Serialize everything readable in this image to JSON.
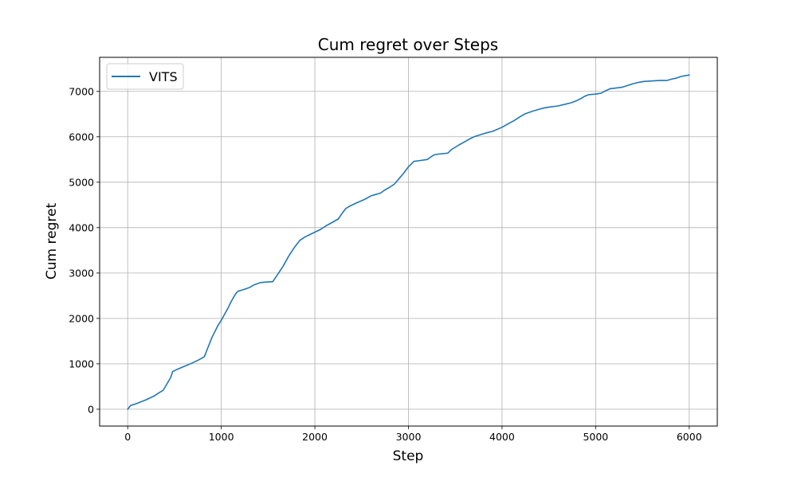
{
  "chart_data": {
    "type": "line",
    "title": "Cum regret over Steps",
    "xlabel": "Step",
    "ylabel": "Cum regret",
    "xlim": [
      -300,
      6300
    ],
    "ylim": [
      -370,
      7750
    ],
    "xticks": [
      0,
      1000,
      2000,
      3000,
      4000,
      5000,
      6000
    ],
    "yticks": [
      0,
      1000,
      2000,
      3000,
      4000,
      5000,
      6000,
      7000
    ],
    "grid": true,
    "legend_position": "top-left",
    "series": [
      {
        "name": "VITS",
        "color": "#1f77b4",
        "x": [
          0,
          30,
          100,
          200,
          280,
          340,
          380,
          420,
          460,
          480,
          530,
          600,
          680,
          760,
          820,
          850,
          900,
          960,
          1000,
          1040,
          1070,
          1100,
          1130,
          1160,
          1180,
          1230,
          1300,
          1350,
          1420,
          1480,
          1550,
          1600,
          1660,
          1720,
          1780,
          1840,
          1890,
          1950,
          2000,
          2060,
          2120,
          2190,
          2250,
          2290,
          2330,
          2370,
          2450,
          2530,
          2600,
          2650,
          2700,
          2750,
          2800,
          2850,
          2900,
          2950,
          3000,
          3060,
          3100,
          3200,
          3270,
          3320,
          3420,
          3460,
          3540,
          3600,
          3660,
          3700,
          3760,
          3820,
          3900,
          4000,
          4060,
          4130,
          4200,
          4250,
          4320,
          4400,
          4460,
          4520,
          4600,
          4660,
          4740,
          4800,
          4840,
          4880,
          4930,
          5000,
          5060,
          5100,
          5160,
          5200,
          5280,
          5340,
          5400,
          5460,
          5520,
          5600,
          5680,
          5760,
          5810,
          5860,
          5900,
          5940,
          6000
        ],
        "values": [
          0,
          80,
          130,
          210,
          290,
          370,
          420,
          560,
          700,
          830,
          880,
          940,
          1010,
          1090,
          1160,
          1320,
          1580,
          1830,
          1960,
          2110,
          2220,
          2350,
          2460,
          2560,
          2600,
          2630,
          2680,
          2740,
          2790,
          2800,
          2810,
          2960,
          3150,
          3370,
          3560,
          3720,
          3790,
          3850,
          3900,
          3960,
          4040,
          4120,
          4190,
          4310,
          4420,
          4470,
          4550,
          4620,
          4700,
          4730,
          4760,
          4830,
          4890,
          4960,
          5080,
          5200,
          5340,
          5460,
          5470,
          5500,
          5600,
          5620,
          5640,
          5720,
          5820,
          5890,
          5960,
          6000,
          6040,
          6080,
          6120,
          6210,
          6280,
          6360,
          6450,
          6510,
          6560,
          6610,
          6640,
          6660,
          6680,
          6710,
          6750,
          6800,
          6840,
          6890,
          6930,
          6940,
          6960,
          7010,
          7060,
          7070,
          7090,
          7130,
          7170,
          7200,
          7220,
          7230,
          7240,
          7240,
          7270,
          7290,
          7320,
          7340,
          7360
        ]
      }
    ]
  }
}
